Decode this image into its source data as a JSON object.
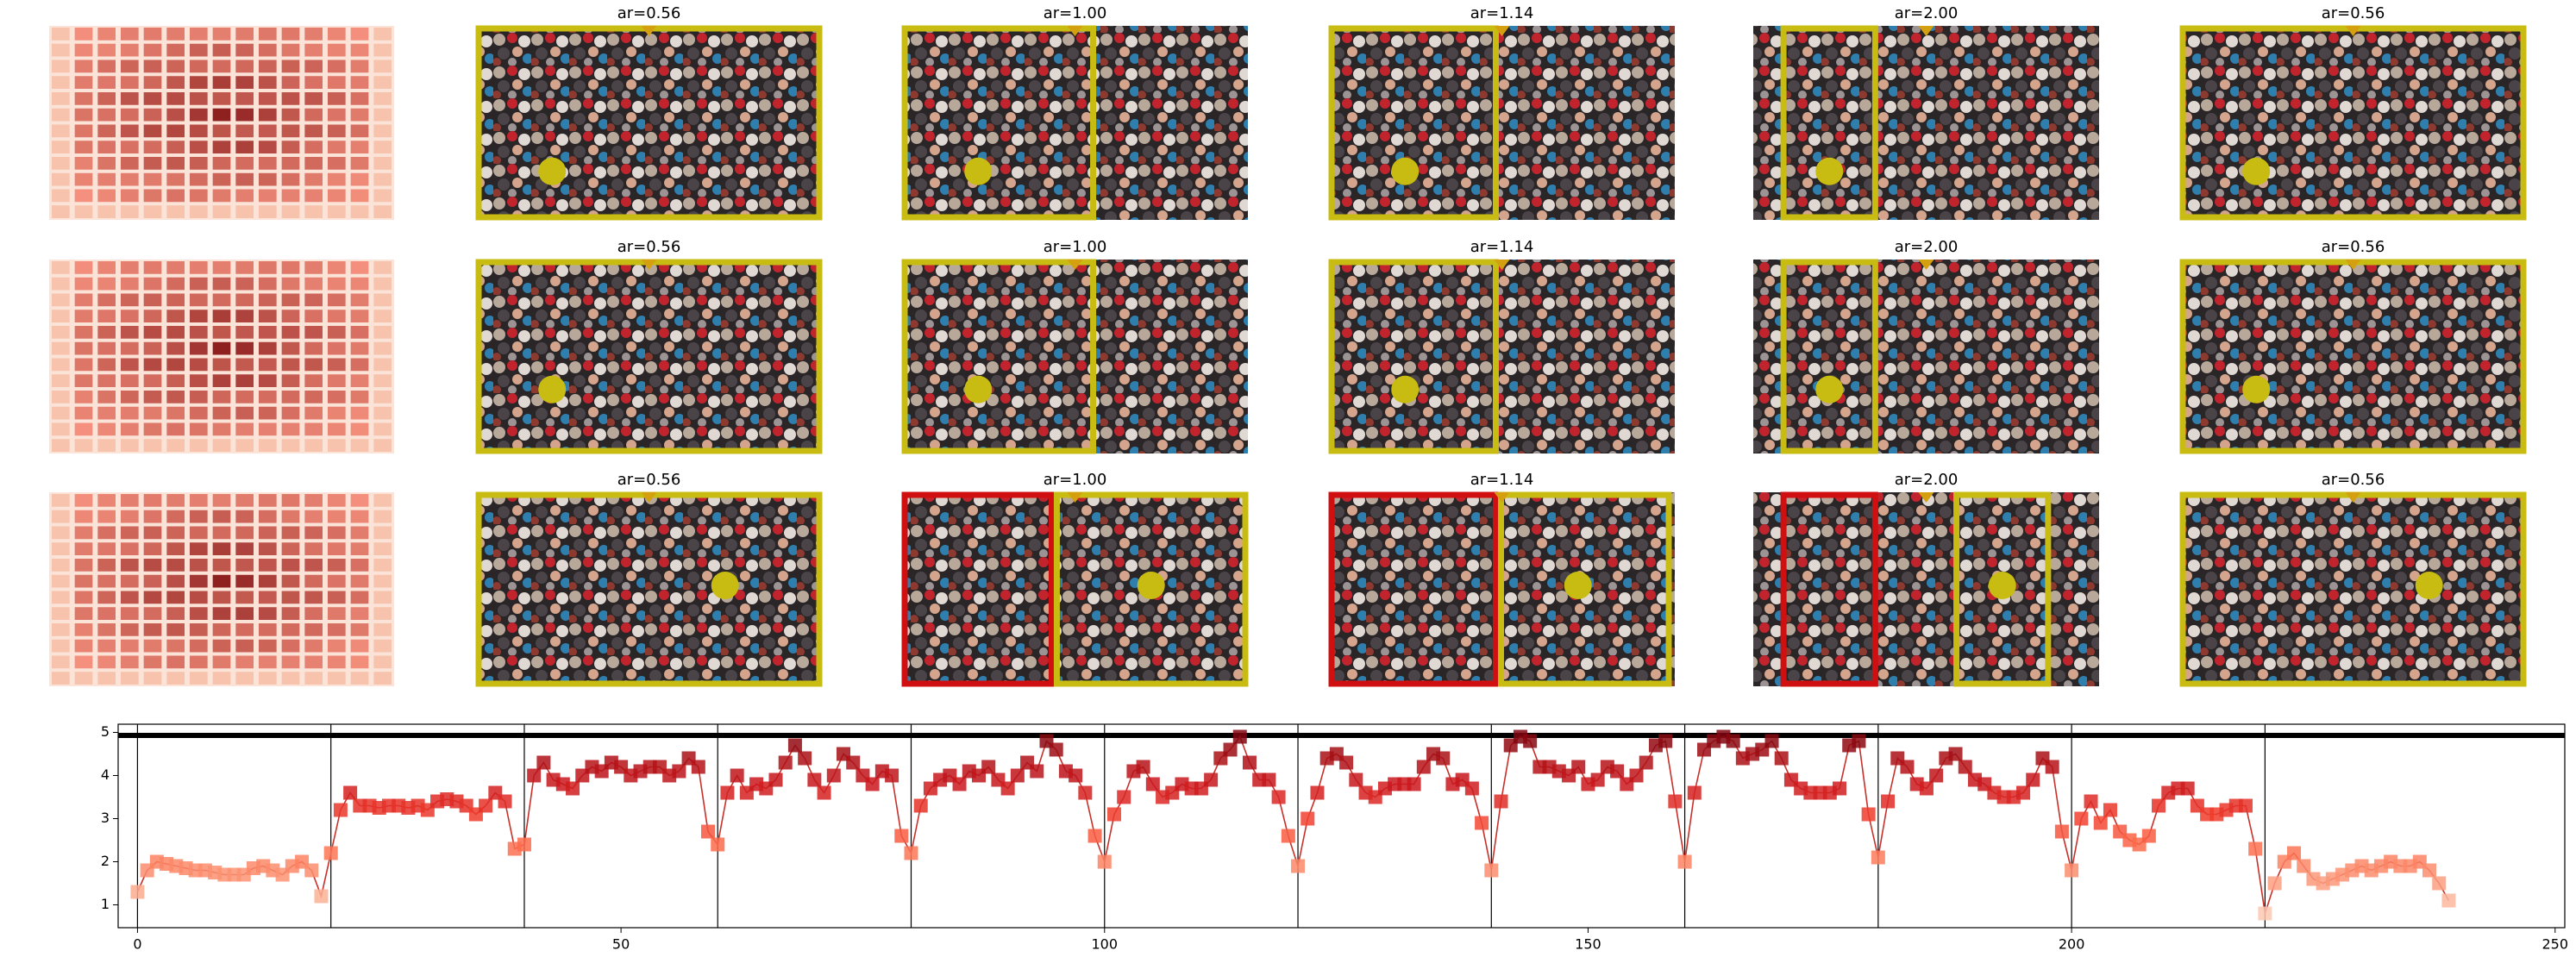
{
  "panels": {
    "titles": [
      [
        "ar=0.56",
        "ar=1.00",
        "ar=1.14",
        "ar=2.00",
        "ar=0.56"
      ],
      [
        "ar=0.56",
        "ar=1.00",
        "ar=1.14",
        "ar=2.00",
        "ar=0.56"
      ],
      [
        "ar=0.56",
        "ar=1.00",
        "ar=1.14",
        "ar=2.00",
        "ar=0.56"
      ]
    ]
  },
  "chart_data": {
    "type": "line",
    "colormap": "Reds",
    "line_color": "#c8302a",
    "xlim": [
      -2,
      251
    ],
    "ylim": [
      0.47,
      5.19
    ],
    "xticks": [
      0,
      50,
      100,
      150,
      200,
      250
    ],
    "yticks": [
      1,
      2,
      3,
      4,
      5
    ],
    "vlines": [
      0,
      20,
      40,
      60,
      80,
      100,
      120,
      140,
      160,
      180,
      200,
      220
    ],
    "hline": 4.93,
    "x": [
      0,
      1,
      2,
      3,
      4,
      5,
      6,
      7,
      8,
      9,
      10,
      11,
      12,
      13,
      14,
      15,
      16,
      17,
      18,
      19,
      20,
      21,
      22,
      23,
      24,
      25,
      26,
      27,
      28,
      29,
      30,
      31,
      32,
      33,
      34,
      35,
      36,
      37,
      38,
      39,
      40,
      41,
      42,
      43,
      44,
      45,
      46,
      47,
      48,
      49,
      50,
      51,
      52,
      53,
      54,
      55,
      56,
      57,
      58,
      59,
      60,
      61,
      62,
      63,
      64,
      65,
      66,
      67,
      68,
      69,
      70,
      71,
      72,
      73,
      74,
      75,
      76,
      77,
      78,
      79,
      80,
      81,
      82,
      83,
      84,
      85,
      86,
      87,
      88,
      89,
      90,
      91,
      92,
      93,
      94,
      95,
      96,
      97,
      98,
      99,
      100,
      101,
      102,
      103,
      104,
      105,
      106,
      107,
      108,
      109,
      110,
      111,
      112,
      113,
      114,
      115,
      116,
      117,
      118,
      119,
      120,
      121,
      122,
      123,
      124,
      125,
      126,
      127,
      128,
      129,
      130,
      131,
      132,
      133,
      134,
      135,
      136,
      137,
      138,
      139,
      140,
      141,
      142,
      143,
      144,
      145,
      146,
      147,
      148,
      149,
      150,
      151,
      152,
      153,
      154,
      155,
      156,
      157,
      158,
      159,
      160,
      161,
      162,
      163,
      164,
      165,
      166,
      167,
      168,
      169,
      170,
      171,
      172,
      173,
      174,
      175,
      176,
      177,
      178,
      179,
      180,
      181,
      182,
      183,
      184,
      185,
      186,
      187,
      188,
      189,
      190,
      191,
      192,
      193,
      194,
      195,
      196,
      197,
      198,
      199,
      200,
      201,
      202,
      203,
      204,
      205,
      206,
      207,
      208,
      209,
      210,
      211,
      212,
      213,
      214,
      215,
      216,
      217,
      218,
      219,
      220,
      221,
      222,
      223,
      224,
      225,
      226,
      227,
      228,
      229,
      230,
      231,
      232,
      233,
      234,
      235,
      236,
      237,
      238,
      239
    ],
    "values": [
      1.3,
      1.8,
      2.0,
      1.95,
      1.9,
      1.85,
      1.8,
      1.8,
      1.75,
      1.7,
      1.7,
      1.7,
      1.85,
      1.9,
      1.8,
      1.7,
      1.9,
      2.0,
      1.8,
      1.2,
      2.2,
      3.2,
      3.6,
      3.3,
      3.3,
      3.25,
      3.3,
      3.3,
      3.25,
      3.3,
      3.2,
      3.4,
      3.45,
      3.4,
      3.3,
      3.1,
      3.3,
      3.6,
      3.4,
      2.3,
      2.4,
      4.0,
      4.3,
      3.9,
      3.8,
      3.7,
      4.0,
      4.2,
      4.1,
      4.3,
      4.2,
      4.0,
      4.1,
      4.2,
      4.2,
      4.0,
      4.1,
      4.4,
      4.2,
      2.7,
      2.4,
      3.6,
      4.0,
      3.6,
      3.8,
      3.7,
      3.9,
      4.3,
      4.7,
      4.4,
      3.9,
      3.6,
      4.0,
      4.5,
      4.3,
      4.0,
      3.8,
      4.1,
      4.0,
      2.6,
      2.2,
      3.3,
      3.7,
      3.9,
      4.0,
      3.8,
      4.1,
      4.0,
      4.2,
      3.9,
      3.7,
      4.0,
      4.3,
      4.1,
      4.8,
      4.6,
      4.1,
      4.0,
      3.6,
      2.6,
      2.0,
      3.1,
      3.5,
      4.1,
      4.2,
      3.8,
      3.5,
      3.6,
      3.8,
      3.7,
      3.7,
      3.9,
      4.4,
      4.6,
      4.9,
      4.3,
      3.9,
      3.9,
      3.5,
      2.6,
      1.9,
      3.0,
      3.6,
      4.4,
      4.5,
      4.3,
      3.9,
      3.6,
      3.5,
      3.7,
      3.8,
      3.8,
      3.8,
      4.2,
      4.5,
      4.4,
      3.8,
      3.9,
      3.7,
      2.9,
      1.8,
      3.4,
      4.7,
      4.9,
      4.8,
      4.2,
      4.2,
      4.1,
      4.0,
      4.2,
      3.8,
      3.9,
      4.2,
      4.1,
      3.8,
      4.0,
      4.3,
      4.7,
      4.8,
      3.4,
      2.0,
      3.6,
      4.6,
      4.8,
      4.9,
      4.8,
      4.4,
      4.5,
      4.6,
      4.8,
      4.4,
      3.9,
      3.7,
      3.6,
      3.6,
      3.6,
      3.7,
      4.7,
      4.8,
      3.1,
      2.1,
      3.4,
      4.4,
      4.2,
      3.8,
      3.7,
      4.0,
      4.4,
      4.5,
      4.2,
      3.9,
      3.8,
      3.6,
      3.5,
      3.5,
      3.6,
      3.9,
      4.4,
      4.2,
      2.7,
      1.8,
      3.0,
      3.4,
      2.9,
      3.2,
      2.7,
      2.5,
      2.4,
      2.6,
      3.3,
      3.6,
      3.7,
      3.7,
      3.3,
      3.1,
      3.1,
      3.2,
      3.3,
      3.3,
      2.3,
      0.8,
      1.5,
      2.0,
      2.2,
      1.9,
      1.6,
      1.5,
      1.6,
      1.7,
      1.8,
      1.9,
      1.8,
      1.9,
      2.0,
      1.9,
      1.9,
      2.0,
      1.8,
      1.5,
      1.1
    ]
  }
}
